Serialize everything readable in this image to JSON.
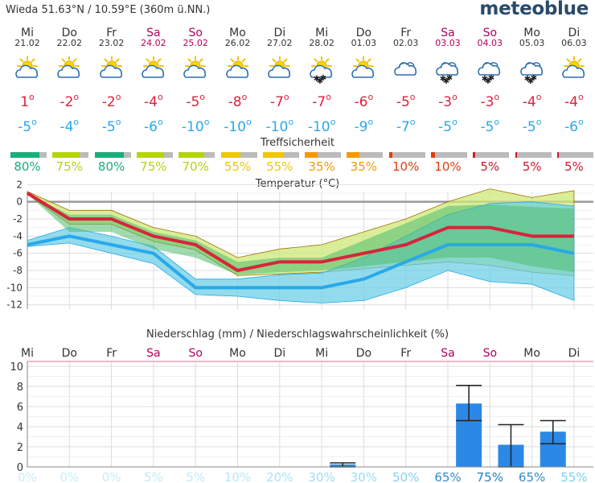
{
  "header": {
    "location": "Wieda  51.63°N / 10.59°E (360m ü.NN.)",
    "brand": "meteoblue"
  },
  "days": [
    {
      "day": "Mi",
      "date": "21.02",
      "weekend": false,
      "icon": "sun-cloud-icon",
      "tmax": "1",
      "tmin": "-5",
      "sure": 80,
      "sure_label": "80%"
    },
    {
      "day": "Do",
      "date": "22.02",
      "weekend": false,
      "icon": "sun-cloud-icon",
      "tmax": "-2",
      "tmin": "-4",
      "sure": 75,
      "sure_label": "75%"
    },
    {
      "day": "Fr",
      "date": "23.02",
      "weekend": false,
      "icon": "sun-cloud-icon",
      "tmax": "-2",
      "tmin": "-5",
      "sure": 80,
      "sure_label": "80%"
    },
    {
      "day": "Sa",
      "date": "24.02",
      "weekend": true,
      "icon": "sun-cloud-icon",
      "tmax": "-4",
      "tmin": "-6",
      "sure": 75,
      "sure_label": "75%"
    },
    {
      "day": "So",
      "date": "25.02",
      "weekend": true,
      "icon": "sun-cloud-icon",
      "tmax": "-5",
      "tmin": "-10",
      "sure": 70,
      "sure_label": "70%"
    },
    {
      "day": "Mo",
      "date": "26.02",
      "weekend": false,
      "icon": "sun-cloud-icon",
      "tmax": "-8",
      "tmin": "-10",
      "sure": 55,
      "sure_label": "55%"
    },
    {
      "day": "Di",
      "date": "27.02",
      "weekend": false,
      "icon": "sun-cloud-icon",
      "tmax": "-7",
      "tmin": "-10",
      "sure": 55,
      "sure_label": "55%"
    },
    {
      "day": "Mi",
      "date": "28.02",
      "weekend": false,
      "icon": "sun-cloud-snow-icon",
      "tmax": "-7",
      "tmin": "-10",
      "sure": 35,
      "sure_label": "35%"
    },
    {
      "day": "Do",
      "date": "01.03",
      "weekend": false,
      "icon": "sun-cloud-icon",
      "tmax": "-6",
      "tmin": "-9",
      "sure": 35,
      "sure_label": "35%"
    },
    {
      "day": "Fr",
      "date": "02.03",
      "weekend": false,
      "icon": "cloud-icon",
      "tmax": "-5",
      "tmin": "-7",
      "sure": 10,
      "sure_label": "10%"
    },
    {
      "day": "Sa",
      "date": "03.03",
      "weekend": true,
      "icon": "cloud-snow-icon",
      "tmax": "-3",
      "tmin": "-5",
      "sure": 10,
      "sure_label": "10%"
    },
    {
      "day": "So",
      "date": "04.03",
      "weekend": true,
      "icon": "cloud-snow-icon",
      "tmax": "-3",
      "tmin": "-5",
      "sure": 5,
      "sure_label": "5%"
    },
    {
      "day": "Mo",
      "date": "05.03",
      "weekend": false,
      "icon": "cloud-snow-icon",
      "tmax": "-4",
      "tmin": "-5",
      "sure": 5,
      "sure_label": "5%"
    },
    {
      "day": "Di",
      "date": "06.03",
      "weekend": false,
      "icon": "sun-cloud-icon",
      "tmax": "-4",
      "tmin": "-6",
      "sure": 5,
      "sure_label": "5%"
    }
  ],
  "sure_title": "Treffsicherheit",
  "colors": {
    "tmax": "#d8243c",
    "tmin": "#2aa8e8",
    "precip": "#2b88e6",
    "sure_hi": "#1aae7a",
    "sure_mid": "#b5d40a",
    "sure_yel": "#f0c800",
    "sure_org": "#f39a00",
    "sure_red": "#e03c10",
    "sure_dred": "#d01830"
  },
  "chart_data": [
    {
      "type": "line",
      "title": "Temperatur (°C)",
      "x": [
        "Mi",
        "Do",
        "Fr",
        "Sa",
        "So",
        "Mo",
        "Di",
        "Mi",
        "Do",
        "Fr",
        "Sa",
        "So",
        "Mo",
        "Di"
      ],
      "ylim": [
        -12.5,
        2.5
      ],
      "yticks": [
        2,
        0,
        -2,
        -4,
        -6,
        -8,
        -10,
        -12
      ],
      "grid": true,
      "series": [
        {
          "values": [
            1,
            -2,
            -2,
            -4,
            -5,
            -8,
            -7,
            -7,
            -6,
            -5,
            -3,
            -3,
            -4,
            -4
          ]
        },
        {
          "values": [
            -5,
            -4,
            -5,
            -6,
            -10,
            -10,
            -10,
            -10,
            -9,
            -7,
            -5,
            -5,
            -5,
            -6
          ]
        },
        {
          "values": [
            1.2,
            -1,
            -1,
            -3,
            -4,
            -6.5,
            -5.5,
            -5,
            -3.5,
            -2,
            0,
            1.5,
            0.5,
            1.3
          ]
        },
        {
          "values": [
            0.9,
            -2.6,
            -2.6,
            -4.6,
            -5.6,
            -8.6,
            -8.4,
            -8.2,
            -7.8,
            -7.4,
            -7,
            -7.4,
            -8.2,
            -8.6
          ]
        },
        {
          "values": [
            0.9,
            -1.5,
            -1.5,
            -3.5,
            -4.5,
            -7,
            -6.5,
            -6.5,
            -4.5,
            -2.5,
            -0.5,
            -0.3,
            -0.6,
            -0.8
          ]
        },
        {
          "values": [
            0.9,
            -3.5,
            -3.5,
            -5.5,
            -6.5,
            -8.5,
            -8.2,
            -8,
            -7.5,
            -7,
            -6.5,
            -6.5,
            -7.5,
            -8.2
          ]
        },
        {
          "values": [
            -4.5,
            -3,
            -4,
            -5.2,
            -9,
            -9,
            -8.5,
            -8.3,
            -6.5,
            -4,
            -1.5,
            -0.2,
            0,
            -0.5
          ]
        },
        {
          "values": [
            -5.2,
            -4.8,
            -6,
            -7.2,
            -10.8,
            -11,
            -11.5,
            -11.8,
            -11.5,
            -10,
            -8,
            -9.3,
            -9.6,
            -11.5
          ]
        }
      ]
    },
    {
      "type": "bar",
      "title": "Niederschlag (mm) / Niederschlagswahrscheinlichkeit (%)",
      "categories": [
        "Mi",
        "Do",
        "Fr",
        "Sa",
        "So",
        "Mo",
        "Di",
        "Mi",
        "Do",
        "Fr",
        "Sa",
        "So",
        "Mo",
        "Di"
      ],
      "ylim": [
        0,
        10
      ],
      "yticks": [
        0,
        2,
        4,
        6,
        8,
        10
      ],
      "grid": true,
      "values": [
        0,
        0,
        0,
        0,
        0,
        0,
        0,
        0.25,
        0,
        0,
        6.3,
        2.2,
        3.5,
        0
      ],
      "err_low": [
        0,
        0,
        0,
        0,
        0,
        0,
        0,
        0,
        0,
        0,
        4.6,
        0,
        2.3,
        0
      ],
      "err_high": [
        0,
        0,
        0,
        0,
        0,
        0,
        0,
        0.4,
        0,
        0,
        8.1,
        4.2,
        4.6,
        0
      ],
      "probability": [
        0,
        0,
        0,
        5,
        5,
        10,
        20,
        30,
        30,
        50,
        65,
        75,
        65,
        55
      ],
      "probability_labels": [
        "0%",
        "0%",
        "0%",
        "5%",
        "5%",
        "10%",
        "20%",
        "30%",
        "30%",
        "50%",
        "65%",
        "75%",
        "65%",
        "55%"
      ]
    }
  ]
}
